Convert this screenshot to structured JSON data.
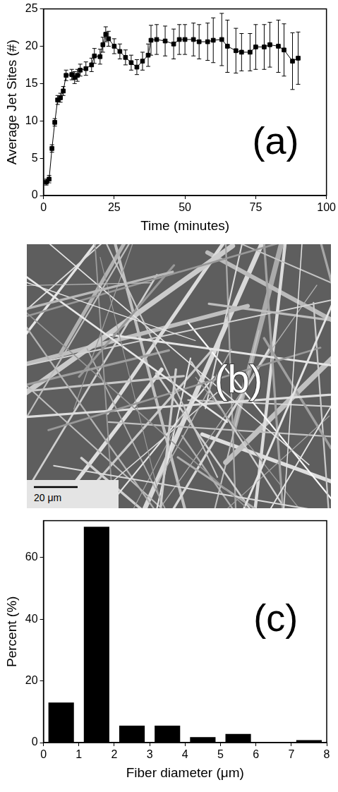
{
  "chart_data": [
    {
      "type": "line",
      "x": [
        1,
        2,
        3,
        4,
        5,
        6,
        7,
        8,
        10,
        11,
        12,
        13,
        15,
        17,
        18,
        20,
        21,
        22,
        23,
        25,
        27,
        29,
        31,
        33,
        35,
        37,
        38,
        40,
        43,
        46,
        48,
        50,
        53,
        55,
        58,
        60,
        63,
        65,
        68,
        70,
        73,
        75,
        78,
        80,
        83,
        85,
        88,
        90
      ],
      "values": [
        1.8,
        2.2,
        6.3,
        9.8,
        12.8,
        13.1,
        14.0,
        16.1,
        16.2,
        15.8,
        16.1,
        16.8,
        17.0,
        17.5,
        18.7,
        18.6,
        20.2,
        21.6,
        21.0,
        20.0,
        19.3,
        18.5,
        17.8,
        17.2,
        18.0,
        18.8,
        20.8,
        20.9,
        20.7,
        20.3,
        20.9,
        20.9,
        20.9,
        20.6,
        20.6,
        20.8,
        20.9,
        20.0,
        19.4,
        19.2,
        19.2,
        19.9,
        19.9,
        20.2,
        20.0,
        19.5,
        18.0,
        18.4
      ],
      "errors": [
        0.4,
        0.5,
        0.5,
        0.5,
        0.6,
        0.6,
        0.6,
        0.7,
        0.7,
        0.8,
        0.8,
        0.8,
        0.9,
        0.9,
        1.0,
        1.0,
        1.0,
        1.0,
        1.0,
        1.0,
        1.0,
        1.0,
        1.0,
        1.0,
        1.2,
        1.5,
        2.0,
        2.0,
        2.0,
        2.0,
        2.0,
        2.0,
        2.2,
        2.3,
        2.5,
        3.0,
        3.5,
        3.5,
        3.0,
        2.5,
        2.5,
        3.0,
        3.0,
        3.0,
        3.5,
        3.5,
        3.8,
        3.5
      ],
      "x_label": "Time (minutes)",
      "y_label": "Average Jet Sites (#)",
      "xlim": [
        0,
        100
      ],
      "xticks": [
        0,
        25,
        50,
        75,
        100
      ],
      "ylim": [
        0,
        25
      ],
      "yticks": [
        0,
        5,
        10,
        15,
        20,
        25
      ],
      "grid": false,
      "marker": "square",
      "line_style": "solid",
      "color": "#000000",
      "annotations": [
        "(a)"
      ]
    },
    {
      "type": "histogram",
      "bins": [
        0,
        1,
        2,
        3,
        4,
        5,
        6,
        7,
        8
      ],
      "values": [
        13,
        70,
        5.5,
        5.5,
        1.8,
        2.8,
        0,
        0.8
      ],
      "x_label": "Fiber diameter (μm)",
      "y_label": "Percent (%)",
      "xlim": [
        0,
        8
      ],
      "xticks": [
        0,
        1,
        2,
        3,
        4,
        5,
        6,
        7,
        8
      ],
      "ylim": [
        0,
        72
      ],
      "yticks": [
        0,
        20,
        40,
        60
      ],
      "grid": false,
      "color": "#000000",
      "annotations": [
        "(c)"
      ]
    }
  ],
  "image_panel": {
    "label": "(b)",
    "scale_bar_label": "20 μm"
  }
}
